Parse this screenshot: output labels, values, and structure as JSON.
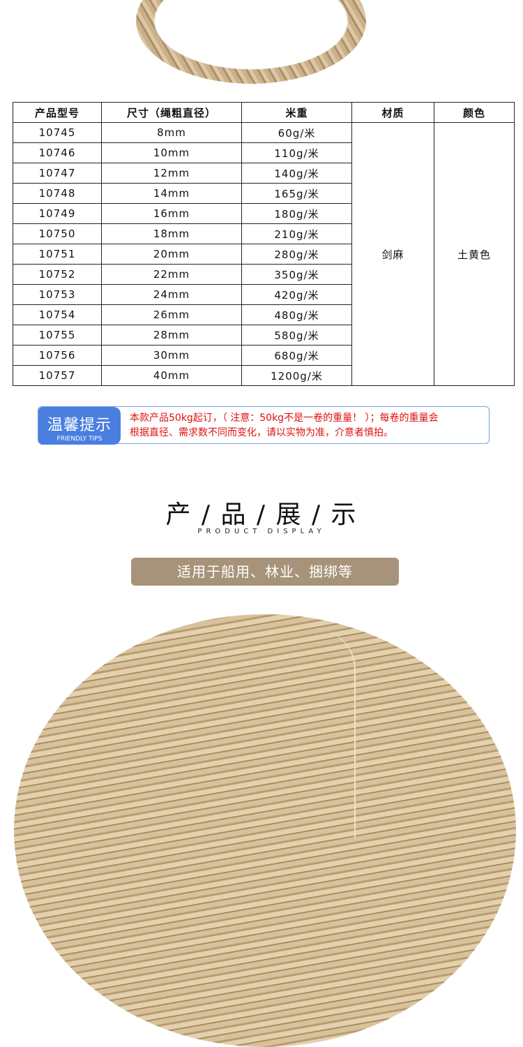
{
  "table": {
    "headers": [
      "产品型号",
      "尺寸（绳粗直径）",
      "米重",
      "材质",
      "颜色"
    ],
    "rows": [
      [
        "10745",
        "8mm",
        "60g/米"
      ],
      [
        "10746",
        "10mm",
        "110g/米"
      ],
      [
        "10747",
        "12mm",
        "140g/米"
      ],
      [
        "10748",
        "14mm",
        "165g/米"
      ],
      [
        "10749",
        "16mm",
        "180g/米"
      ],
      [
        "10750",
        "18mm",
        "210g/米"
      ],
      [
        "10751",
        "20mm",
        "280g/米"
      ],
      [
        "10752",
        "22mm",
        "350g/米"
      ],
      [
        "10753",
        "24mm",
        "420g/米"
      ],
      [
        "10754",
        "26mm",
        "480g/米"
      ],
      [
        "10755",
        "28mm",
        "580g/米"
      ],
      [
        "10756",
        "30mm",
        "680g/米"
      ],
      [
        "10757",
        "40mm",
        "1200g/米"
      ]
    ],
    "material": "剑麻",
    "color": "土黄色"
  },
  "tips": {
    "title": "温馨提示",
    "subtitle": "FRIENDLY TIPS",
    "line1": "本款产品50kg起订，（ 注意：50kg不是一卷的重量！ ）；每卷的重量会",
    "line2": "根据直径、需求数不同而变化，请以实物为准，介意者慎拍。"
  },
  "section": {
    "title": "产 / 品 / 展 / 示",
    "subtitle": "PRODUCT    DISPLAY",
    "usage": "适用于船用、林业、捆绑等"
  }
}
